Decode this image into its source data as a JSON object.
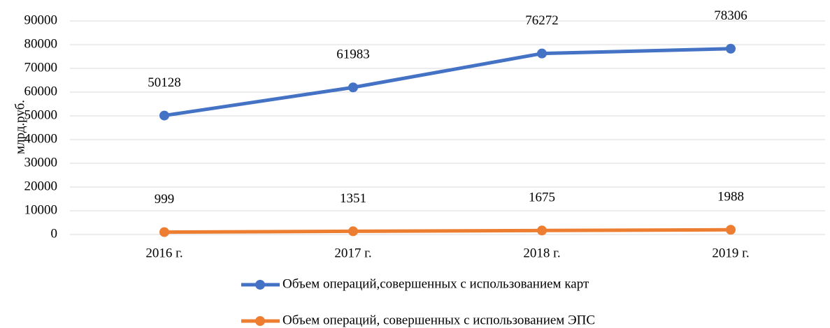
{
  "chart_data": {
    "type": "line",
    "y_label": "млрд.руб.",
    "categories": [
      "2016 г.",
      "2017 г.",
      "2018 г.",
      "2019 г."
    ],
    "series": [
      {
        "name": "Объем операций,совершенных  с использованием карт",
        "color": "#4472c4",
        "values": [
          50128,
          61983,
          76272,
          78306
        ]
      },
      {
        "name": "Объем операций, совершенных с использованием ЭПС",
        "color": "#ed7d31",
        "values": [
          999,
          1351,
          1675,
          1988
        ]
      }
    ],
    "ylim": [
      0,
      90000
    ],
    "yticks": [
      0,
      10000,
      20000,
      30000,
      40000,
      50000,
      60000,
      70000,
      80000,
      90000
    ],
    "grid": true,
    "data_labels": true,
    "legend": "bottom"
  }
}
